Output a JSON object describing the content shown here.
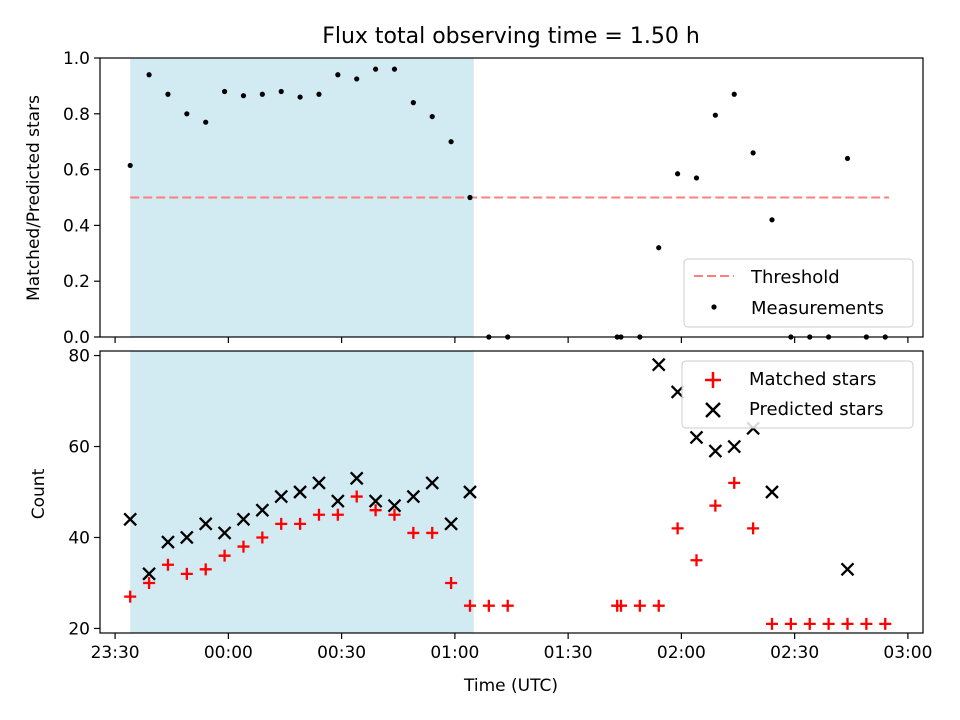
{
  "figure": {
    "title": "Flux total observing time = 1.50 h",
    "xlabel": "Time (UTC)",
    "x_tick_labels": [
      "23:30",
      "00:00",
      "00:30",
      "01:00",
      "01:30",
      "02:00",
      "02:30",
      "03:00"
    ]
  },
  "chart_data": [
    {
      "type": "scatter",
      "panel": "top",
      "ylabel": "Matched/Predicted stars",
      "ylim": [
        0.0,
        1.0
      ],
      "y_ticks": [
        0.0,
        0.2,
        0.4,
        0.6,
        0.8,
        1.0
      ],
      "y_tick_labels": [
        "0.0",
        "0.2",
        "0.4",
        "0.6",
        "0.8",
        "1.0"
      ],
      "xlim": [
        "23:26",
        "03:04"
      ],
      "x_ticks": [
        "23:30",
        "00:00",
        "00:30",
        "01:00",
        "01:30",
        "02:00",
        "02:30",
        "03:00"
      ],
      "shaded_interval": {
        "start": "23:34",
        "end": "01:05",
        "color": "#add8e6"
      },
      "legend_position": "lower right",
      "series": [
        {
          "name": "Threshold",
          "kind": "dashed-line",
          "color": "#ff7f7f",
          "x": [
            "23:34",
            "02:55"
          ],
          "y": [
            0.5,
            0.5
          ]
        },
        {
          "name": "Measurements",
          "kind": "points",
          "color": "#000000",
          "points": [
            [
              "23:34",
              0.615
            ],
            [
              "23:39",
              0.94
            ],
            [
              "23:44",
              0.87
            ],
            [
              "23:49",
              0.8
            ],
            [
              "23:54",
              0.77
            ],
            [
              "23:59",
              0.88
            ],
            [
              "00:04",
              0.865
            ],
            [
              "00:09",
              0.87
            ],
            [
              "00:14",
              0.88
            ],
            [
              "00:19",
              0.86
            ],
            [
              "00:24",
              0.87
            ],
            [
              "00:29",
              0.94
            ],
            [
              "00:34",
              0.925
            ],
            [
              "00:39",
              0.96
            ],
            [
              "00:44",
              0.96
            ],
            [
              "00:49",
              0.84
            ],
            [
              "00:54",
              0.79
            ],
            [
              "00:59",
              0.7
            ],
            [
              "01:04",
              0.5
            ],
            [
              "01:09",
              0.0
            ],
            [
              "01:14",
              0.0
            ],
            [
              "01:43",
              0.0
            ],
            [
              "01:44",
              0.0
            ],
            [
              "01:49",
              0.0
            ],
            [
              "01:54",
              0.32
            ],
            [
              "01:59",
              0.585
            ],
            [
              "02:04",
              0.57
            ],
            [
              "02:09",
              0.795
            ],
            [
              "02:14",
              0.87
            ],
            [
              "02:19",
              0.66
            ],
            [
              "02:24",
              0.42
            ],
            [
              "02:29",
              0.0
            ],
            [
              "02:34",
              0.0
            ],
            [
              "02:39",
              0.0
            ],
            [
              "02:44",
              0.64
            ],
            [
              "02:49",
              0.0
            ],
            [
              "02:54",
              0.0
            ]
          ]
        }
      ]
    },
    {
      "type": "scatter",
      "panel": "bottom",
      "ylabel": "Count",
      "ylim": [
        19,
        81
      ],
      "y_ticks": [
        20,
        40,
        60,
        80
      ],
      "y_tick_labels": [
        "20",
        "40",
        "60",
        "80"
      ],
      "xlim": [
        "23:26",
        "03:04"
      ],
      "x_ticks": [
        "23:30",
        "00:00",
        "00:30",
        "01:00",
        "01:30",
        "02:00",
        "02:30",
        "03:00"
      ],
      "shaded_interval": {
        "start": "23:34",
        "end": "01:05",
        "color": "#add8e6"
      },
      "legend_position": "upper right",
      "series": [
        {
          "name": "Matched stars",
          "kind": "plus",
          "color": "#ff0000",
          "points": [
            [
              "23:34",
              27
            ],
            [
              "23:39",
              30
            ],
            [
              "23:44",
              34
            ],
            [
              "23:49",
              32
            ],
            [
              "23:54",
              33
            ],
            [
              "23:59",
              36
            ],
            [
              "00:04",
              38
            ],
            [
              "00:09",
              40
            ],
            [
              "00:14",
              43
            ],
            [
              "00:19",
              43
            ],
            [
              "00:24",
              45
            ],
            [
              "00:29",
              45
            ],
            [
              "00:34",
              49
            ],
            [
              "00:39",
              46
            ],
            [
              "00:44",
              45
            ],
            [
              "00:49",
              41
            ],
            [
              "00:54",
              41
            ],
            [
              "00:59",
              30
            ],
            [
              "01:04",
              25
            ],
            [
              "01:09",
              25
            ],
            [
              "01:14",
              25
            ],
            [
              "01:43",
              25
            ],
            [
              "01:44",
              25
            ],
            [
              "01:49",
              25
            ],
            [
              "01:54",
              25
            ],
            [
              "01:59",
              42
            ],
            [
              "02:04",
              35
            ],
            [
              "02:09",
              47
            ],
            [
              "02:14",
              52
            ],
            [
              "02:19",
              42
            ],
            [
              "02:24",
              21
            ],
            [
              "02:29",
              21
            ],
            [
              "02:34",
              21
            ],
            [
              "02:39",
              21
            ],
            [
              "02:44",
              21
            ],
            [
              "02:49",
              21
            ],
            [
              "02:54",
              21
            ]
          ]
        },
        {
          "name": "Predicted stars",
          "kind": "cross",
          "color": "#000000",
          "points": [
            [
              "23:34",
              44
            ],
            [
              "23:39",
              32
            ],
            [
              "23:44",
              39
            ],
            [
              "23:49",
              40
            ],
            [
              "23:54",
              43
            ],
            [
              "23:59",
              41
            ],
            [
              "00:04",
              44
            ],
            [
              "00:09",
              46
            ],
            [
              "00:14",
              49
            ],
            [
              "00:19",
              50
            ],
            [
              "00:24",
              52
            ],
            [
              "00:29",
              48
            ],
            [
              "00:34",
              53
            ],
            [
              "00:39",
              48
            ],
            [
              "00:44",
              47
            ],
            [
              "00:49",
              49
            ],
            [
              "00:54",
              52
            ],
            [
              "00:59",
              43
            ],
            [
              "01:04",
              50
            ],
            [
              "01:54",
              78
            ],
            [
              "01:59",
              72
            ],
            [
              "02:04",
              62
            ],
            [
              "02:09",
              59
            ],
            [
              "02:14",
              60
            ],
            [
              "02:19",
              64
            ],
            [
              "02:24",
              50
            ],
            [
              "02:44",
              33
            ]
          ]
        }
      ]
    }
  ]
}
